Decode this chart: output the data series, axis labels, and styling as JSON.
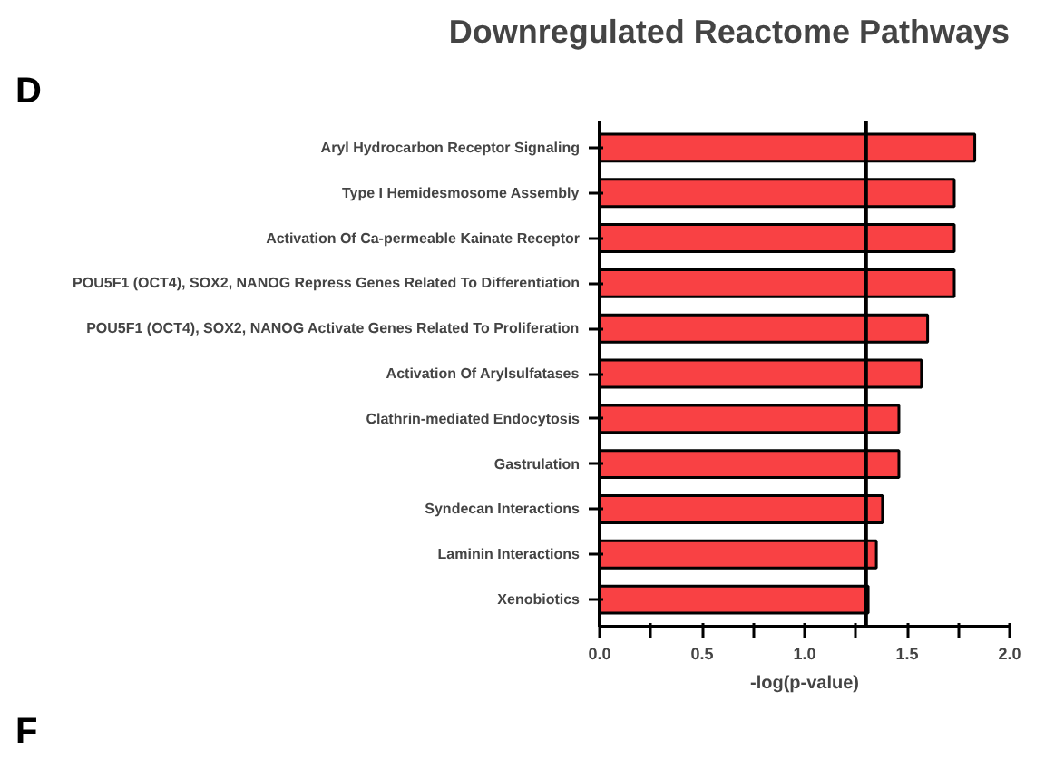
{
  "chart_data": {
    "type": "bar",
    "orientation": "horizontal",
    "title": "Downregulated Reactome Pathways",
    "xlabel": "-log(p-value)",
    "categories": [
      "Aryl Hydrocarbon Receptor Signaling",
      "Type I Hemidesmosome Assembly",
      "Activation Of Ca-permeable Kainate Receptor",
      "POU5F1 (OCT4), SOX2, NANOG Repress Genes Related To Differentiation",
      "POU5F1 (OCT4), SOX2, NANOG Activate Genes Related To Proliferation",
      "Activation Of Arylsulfatases",
      "Clathrin-mediated Endocytosis",
      "Gastrulation",
      "Syndecan Interactions",
      "Laminin Interactions",
      "Xenobiotics"
    ],
    "values": [
      1.83,
      1.73,
      1.73,
      1.73,
      1.6,
      1.57,
      1.46,
      1.46,
      1.38,
      1.35,
      1.31
    ],
    "color": "#f94144",
    "xlim": [
      0,
      2
    ],
    "xticks": [
      {
        "value": 0,
        "label": "0.0"
      },
      {
        "value": 0.25,
        "label": null
      },
      {
        "value": 0.5,
        "label": "0.5"
      },
      {
        "value": 0.75,
        "label": null
      },
      {
        "value": 1,
        "label": "1.0"
      },
      {
        "value": 1.25,
        "label": null
      },
      {
        "value": 1.5,
        "label": "1.5"
      },
      {
        "value": 1.75,
        "label": null
      },
      {
        "value": 2,
        "label": "2.0"
      }
    ],
    "ref_lines": [
      {
        "axis": "x",
        "value": 1.3,
        "color": "#000000"
      }
    ],
    "annotations": [
      "D",
      "F"
    ],
    "grid": false
  }
}
